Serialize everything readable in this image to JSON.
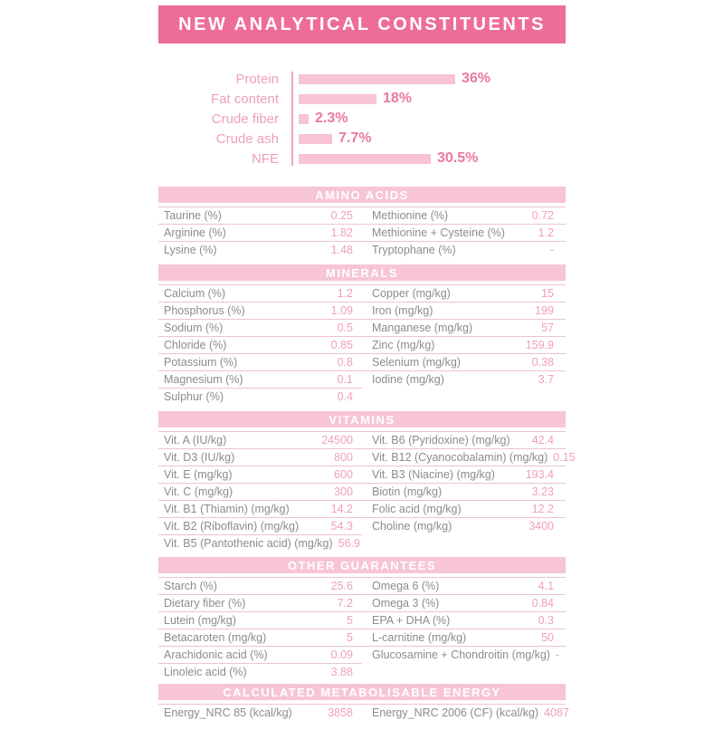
{
  "header": {
    "title": "NEW ANALYTICAL CONSTITUENTS"
  },
  "colors": {
    "banner_bg": "#ee6d98",
    "band_bg": "#f7c5d6",
    "bar_fill": "#f7c3d5",
    "chart_label": "#ef9fba",
    "chart_value": "#e8799f",
    "table_label": "#8c8c8c",
    "table_value": "#efa0bc",
    "row_line": "#ecc3d1"
  },
  "chart_data": {
    "type": "bar",
    "orientation": "horizontal",
    "title": "",
    "categories": [
      "Protein",
      "Fat content",
      "Crude fiber",
      "Crude ash",
      "NFE"
    ],
    "values": [
      36,
      18,
      2.3,
      7.7,
      30.5
    ],
    "value_labels": [
      "36%",
      "18%",
      "2.3%",
      "7.7%",
      "30.5%"
    ],
    "unit": "%",
    "xlim": [
      0,
      40
    ],
    "grid": false,
    "legend": false
  },
  "tables": [
    {
      "title": "AMINO ACIDS",
      "left": [
        {
          "label": "Taurine (%)",
          "value": "0.25"
        },
        {
          "label": "Arginine (%)",
          "value": "1.82"
        },
        {
          "label": "Lysine (%)",
          "value": "1.48"
        }
      ],
      "right": [
        {
          "label": "Methionine (%)",
          "value": "0.72"
        },
        {
          "label": "Methionine + Cysteine (%)",
          "value": "1.2"
        },
        {
          "label": "Tryptophane (%)",
          "value": "-"
        }
      ]
    },
    {
      "title": "MINERALS",
      "left": [
        {
          "label": "Calcium (%)",
          "value": "1.2"
        },
        {
          "label": "Phosphorus (%)",
          "value": "1.09"
        },
        {
          "label": "Sodium (%)",
          "value": "0.5"
        },
        {
          "label": "Chloride (%)",
          "value": "0.85"
        },
        {
          "label": "Potassium (%)",
          "value": "0.8"
        },
        {
          "label": "Magnesium (%)",
          "value": "0.1"
        },
        {
          "label": "Sulphur (%)",
          "value": "0.4"
        }
      ],
      "right": [
        {
          "label": "Copper (mg/kg)",
          "value": "15"
        },
        {
          "label": "Iron (mg/kg)",
          "value": "199"
        },
        {
          "label": "Manganese (mg/kg)",
          "value": "57"
        },
        {
          "label": "Zinc (mg/kg)",
          "value": "159.9"
        },
        {
          "label": "Selenium (mg/kg)",
          "value": "0.38"
        },
        {
          "label": "Iodine (mg/kg)",
          "value": "3.7"
        }
      ]
    },
    {
      "title": "VITAMINS",
      "left": [
        {
          "label": "Vit. A (IU/kg)",
          "value": "24500"
        },
        {
          "label": "Vit. D3 (IU/kg)",
          "value": "800"
        },
        {
          "label": "Vit. E (mg/kg)",
          "value": "600"
        },
        {
          "label": "Vit. C (mg/kg)",
          "value": "300"
        },
        {
          "label": "Vit. B1 (Thiamin) (mg/kg)",
          "value": "14.2"
        },
        {
          "label": "Vit. B2 (Riboflavin) (mg/kg)",
          "value": "54.3"
        },
        {
          "label": "Vit. B5 (Pantothenic acid) (mg/kg)",
          "value": "56.9"
        }
      ],
      "right": [
        {
          "label": "Vit. B6 (Pyridoxine) (mg/kg)",
          "value": "42.4"
        },
        {
          "label": "Vit. B12 (Cyanocobalamin) (mg/kg)",
          "value": "0.15"
        },
        {
          "label": "Vit. B3 (Niacine) (mg/kg)",
          "value": "193.4"
        },
        {
          "label": "Biotin (mg/kg)",
          "value": "3.23"
        },
        {
          "label": "Folic acid (mg/kg)",
          "value": "12.2"
        },
        {
          "label": "Choline (mg/kg)",
          "value": "3400"
        }
      ]
    },
    {
      "title": "OTHER GUARANTEES",
      "left": [
        {
          "label": "Starch (%)",
          "value": "25.6"
        },
        {
          "label": "Dietary fiber (%)",
          "value": "7.2"
        },
        {
          "label": "Lutein (mg/kg)",
          "value": "5"
        },
        {
          "label": "Betacaroten (mg/kg)",
          "value": "5"
        },
        {
          "label": "Arachidonic acid (%)",
          "value": "0.09"
        },
        {
          "label": "Linoleic acid (%)",
          "value": "3.88"
        }
      ],
      "right": [
        {
          "label": "Omega 6 (%)",
          "value": "4.1"
        },
        {
          "label": "Omega 3 (%)",
          "value": "0.84"
        },
        {
          "label": "EPA + DHA (%)",
          "value": "0.3"
        },
        {
          "label": "L-carnitine (mg/kg)",
          "value": "50"
        },
        {
          "label": "Glucosamine + Chondroitin (mg/kg)",
          "value": "-"
        }
      ]
    },
    {
      "title": "CALCULATED METABOLISABLE ENERGY",
      "left": [
        {
          "label": "Energy_NRC 85 (kcal/kg)",
          "value": "3858"
        }
      ],
      "right": [
        {
          "label": "Energy_NRC 2006 (CF) (kcal/kg)",
          "value": "4087"
        }
      ]
    }
  ]
}
